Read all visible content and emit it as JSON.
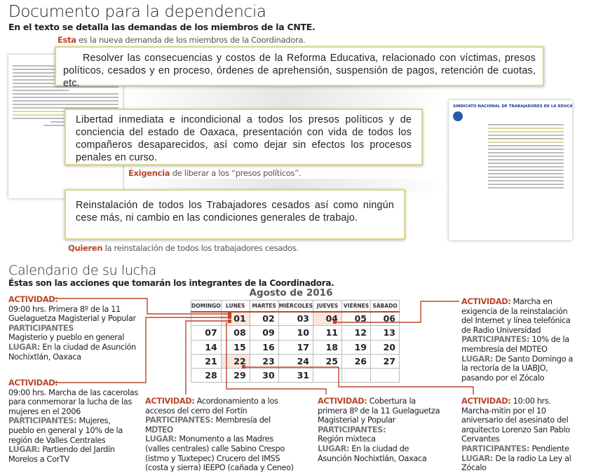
{
  "header": {
    "title": "Documento para la dependencia",
    "subtitle": "En el texto se detalla las demandas de los miembros de la CNTE."
  },
  "captions": [
    {
      "highlight": "Esta",
      "text": " es la nueva demanda de los miembros de la Coordinadora."
    },
    {
      "highlight": "Exigencia",
      "text": " de liberar a los “presos políticos”."
    },
    {
      "highlight": "Quieren",
      "text": " la reinstalación de todos los trabajadores cesados."
    }
  ],
  "quotes": [
    "Resolver las consecuencias y costos de la Reforma Educativa, relacionado con víctimas, presos políticos,  cesados y en proceso, órdenes de aprehensión, suspensión de pagos, retención de cuotas, etc.",
    "Libertad inmediata e incondicional a todos los presos políticos y de conciencia del estado de Oaxaca, presentación con vida de todos los compañeros desaparecidos, así como dejar sin efectos los procesos penales en curso.",
    "Reinstalación de todos los Trabajadores cesados así como ningún cese más, ni cambio en las condiciones generales de trabajo."
  ],
  "document_letterhead": "SINDICATO NACIONAL DE TRABAJADORES DE LA EDUCACION",
  "section2": {
    "title": "Calendario de su lucha",
    "subtitle": "Éstas son las acciones que tomarán los integrantes de la Coordinadora."
  },
  "calendar": {
    "title": "Agosto de 2016",
    "days": [
      "DOMINGO",
      "LUNES",
      "MARTES",
      "MIÉRCOLES",
      "JUEVES",
      "VIERNES",
      "SÁBADO"
    ],
    "weeks": [
      [
        "",
        "01",
        "02",
        "03",
        "04",
        "05",
        "06"
      ],
      [
        "07",
        "08",
        "09",
        "10",
        "11",
        "12",
        "13"
      ],
      [
        "14",
        "15",
        "16",
        "17",
        "18",
        "19",
        "20"
      ],
      [
        "21",
        "22",
        "23",
        "24",
        "25",
        "26",
        "27"
      ],
      [
        "28",
        "29",
        "30",
        "31",
        "",
        "",
        ""
      ]
    ],
    "highlighted": [
      "01",
      "04",
      "22"
    ],
    "accent": "#b9472a"
  },
  "events": [
    {
      "k1": "ACTIVIDAD:",
      "a": "09:00 hrs. Primera 8º de la 11 Guelaguetza Magisterial y Popular",
      "k2": "PARTICIPANTES",
      "p": "Magisterio y pueblo en general",
      "k3": "LUGAR:",
      "l": " En la ciudad de Asunción Nochixtlán, Oaxaca"
    },
    {
      "k1": "ACTIVIDAD:",
      "a": "09:00 hrs. Marcha de las cacerolas para conmemorar la lucha de las mujeres en el 2006",
      "k2": "PARTICIPANTES:",
      "p": " Mujeres, pueblo en general y 10% de la región de Valles Centrales",
      "k3": "LUGAR:",
      "l": " Partiendo del Jardín Morelos a CorTV"
    },
    {
      "k1": "ACTIVIDAD:",
      "a": " Acordonamiento a los accesos del cerro del Fortín",
      "k2": "PARTICIPANTES:",
      "p": " Membresía del MDTEO",
      "k3": "LUGAR:",
      "l": " Monumento a las Madres (valles centrales) calle Sabino Crespo (istmo y Tuxtepec) Crucero del IMSS (costa y sierra) IEEPO (cañada y Ceneo)"
    },
    {
      "k1": "ACTIVIDAD:",
      "a": " Cobertura la primera 8º de la 11 Guelaguetza Magisterial y Popular",
      "k2": "PARTICIPANTES:",
      "p": "Región mixteca",
      "k3": "LUGAR:",
      "l": " En la ciudad de Asunción Nochixtlán, Oaxaca"
    },
    {
      "k1": "ACTIVIDAD:",
      "a": " Marcha en exigencia de la reinstalación del Internet y línea telefónica de Radio Universidad",
      "k2": "PARTICIPANTES:",
      "p": " 10% de la membresía del MDTEO",
      "k3": "LUGAR:",
      "l": " De Santo Domingo a la rectoría de la UABJO, pasando por el Zócalo"
    },
    {
      "k1": "ACTIVIDAD:",
      "a": " 10:00 hrs. Marcha-mitin por el 10 aniversario del asesinato del arquitecto Lorenzo San Pablo Cervantes",
      "k2": "PARTICIPANTES:",
      "p": " Pendiente",
      "k3": "LUGAR:",
      "l": " De la radio La Ley al Zócalo"
    }
  ]
}
